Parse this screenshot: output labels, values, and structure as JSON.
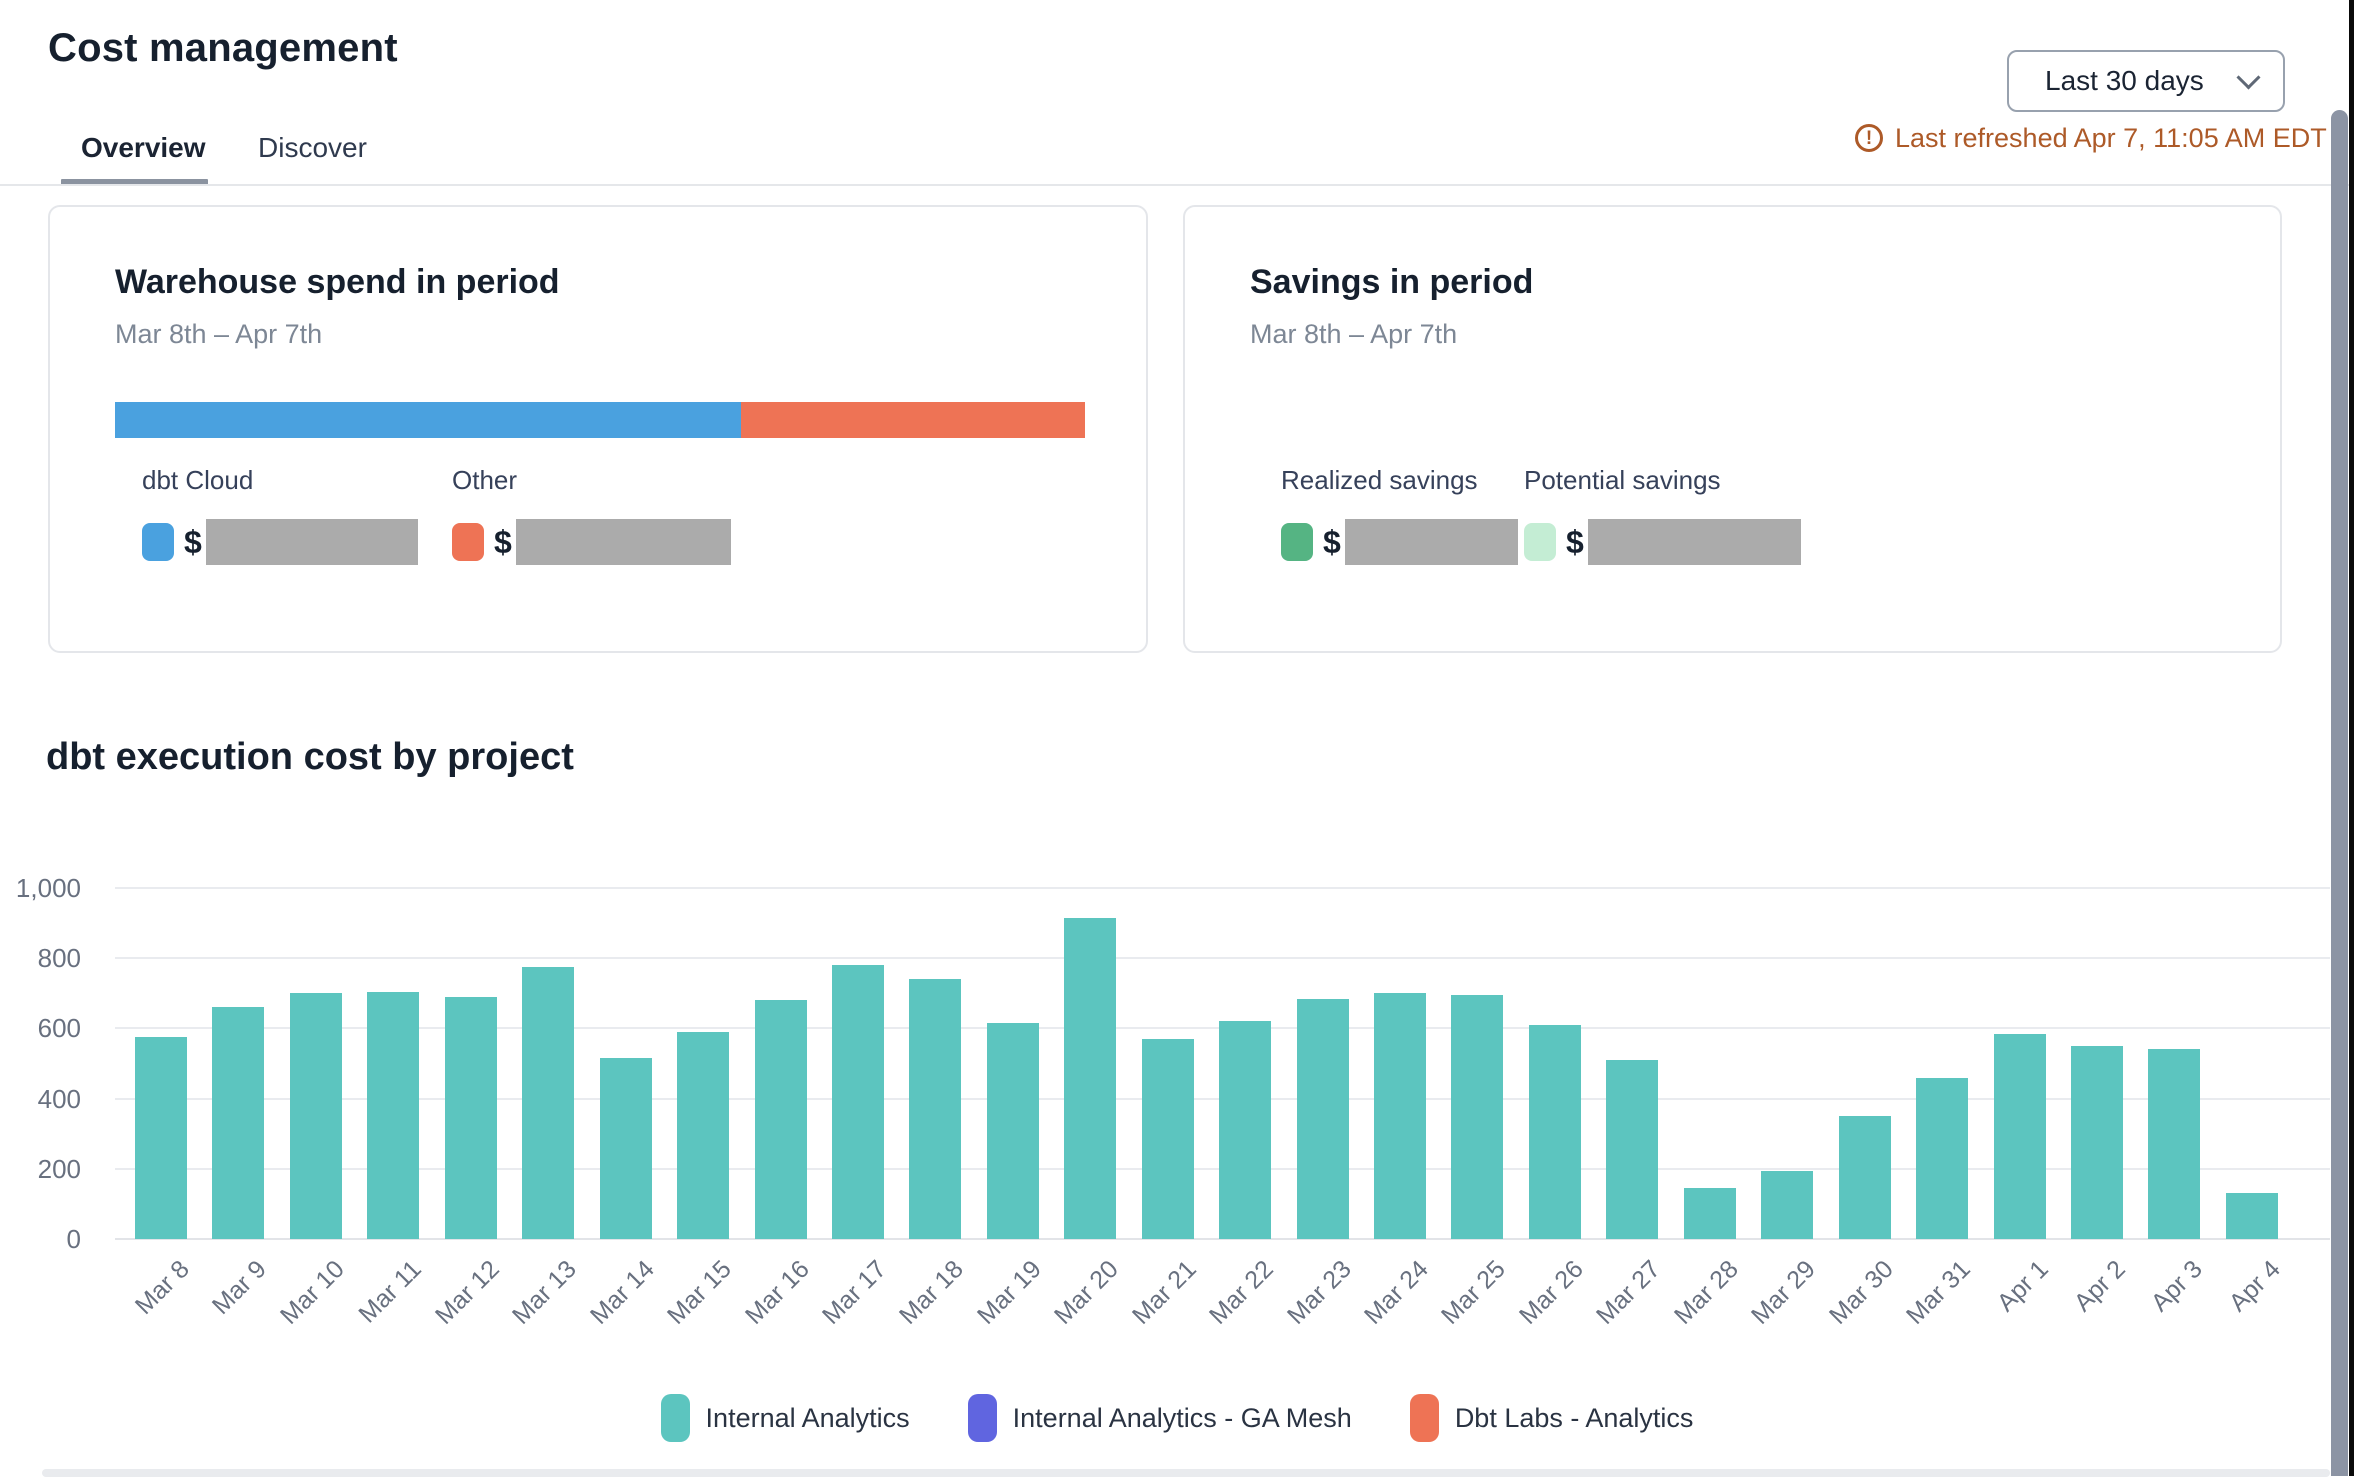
{
  "header": {
    "title": "Cost management",
    "tabs": [
      {
        "label": "Overview",
        "active": true
      },
      {
        "label": "Discover",
        "active": false
      }
    ],
    "date_range_selector": {
      "selected": "Last 30 days"
    },
    "last_refreshed": "Last refreshed Apr 7, 11:05 AM EDT",
    "refresh_warn_glyph": "!",
    "warning_color": "#ad5a28"
  },
  "cards": {
    "warehouse": {
      "title": "Warehouse spend in period",
      "subtitle": "Mar 8th – Apr 7th",
      "bar": {
        "segments": [
          {
            "name": "dbt Cloud",
            "color": "#4aa1df",
            "fraction": 0.645
          },
          {
            "name": "Other",
            "color": "#ee7355",
            "fraction": 0.355
          }
        ]
      },
      "legend": [
        {
          "label": "dbt Cloud",
          "color": "#4aa1df",
          "value_prefix": "$",
          "value_redacted": true
        },
        {
          "label": "Other",
          "color": "#ee7355",
          "value_prefix": "$",
          "value_redacted": true
        }
      ]
    },
    "savings": {
      "title": "Savings in period",
      "subtitle": "Mar 8th – Apr 7th",
      "legend": [
        {
          "label": "Realized savings",
          "color": "#55b483",
          "value_prefix": "$",
          "value_redacted": true
        },
        {
          "label": "Potential savings",
          "color": "#c4edd4",
          "value_prefix": "$",
          "value_redacted": true
        }
      ]
    }
  },
  "chart_section": {
    "title": "dbt execution cost by project"
  },
  "chart_data": {
    "type": "bar",
    "title": "dbt execution cost by project",
    "categories": [
      "Mar 8",
      "Mar 9",
      "Mar 10",
      "Mar 11",
      "Mar 12",
      "Mar 13",
      "Mar 14",
      "Mar 15",
      "Mar 16",
      "Mar 17",
      "Mar 18",
      "Mar 19",
      "Mar 20",
      "Mar 21",
      "Mar 22",
      "Mar 23",
      "Mar 24",
      "Mar 25",
      "Mar 26",
      "Mar 27",
      "Mar 28",
      "Mar 29",
      "Mar 30",
      "Mar 31",
      "Apr 1",
      "Apr 2",
      "Apr 3",
      "Apr 4"
    ],
    "series": [
      {
        "name": "Internal Analytics",
        "color": "#5cc5bf",
        "values": [
          575,
          660,
          700,
          705,
          690,
          775,
          515,
          590,
          680,
          780,
          740,
          615,
          915,
          570,
          620,
          685,
          700,
          695,
          610,
          510,
          145,
          195,
          350,
          460,
          585,
          550,
          540,
          130
        ]
      },
      {
        "name": "Internal Analytics - GA Mesh",
        "color": "#6065e0",
        "values": [
          0,
          0,
          0,
          0,
          0,
          0,
          0,
          0,
          0,
          0,
          0,
          0,
          0,
          0,
          0,
          0,
          0,
          0,
          0,
          0,
          0,
          0,
          0,
          0,
          0,
          0,
          0,
          0
        ]
      },
      {
        "name": "Dbt Labs - Analytics",
        "color": "#ee7355",
        "values": [
          0,
          0,
          0,
          0,
          0,
          0,
          0,
          0,
          0,
          0,
          0,
          0,
          0,
          0,
          0,
          0,
          0,
          0,
          0,
          0,
          0,
          0,
          0,
          0,
          0,
          0,
          0,
          0
        ]
      }
    ],
    "legend_entries": [
      {
        "label": "Internal Analytics",
        "color": "#5cc5bf"
      },
      {
        "label": "Internal Analytics - GA Mesh",
        "color": "#6065e0"
      },
      {
        "label": "Dbt Labs - Analytics",
        "color": "#ee7355"
      }
    ],
    "xlabel": "",
    "ylabel": "",
    "ylim": [
      0,
      1000
    ],
    "yticks": [
      0,
      200,
      400,
      600,
      800,
      1000
    ],
    "ytick_labels": [
      "0",
      "200",
      "400",
      "600",
      "800",
      "1,000"
    ],
    "grid": "horizontal",
    "legend_position": "bottom"
  }
}
